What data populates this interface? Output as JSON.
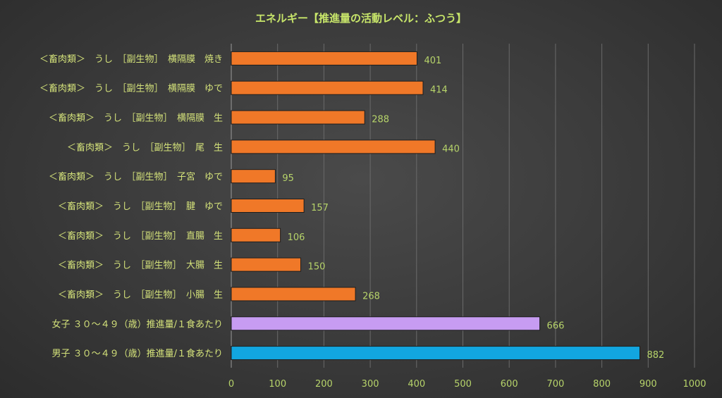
{
  "chart_data": {
    "type": "bar",
    "orientation": "horizontal",
    "title": "エネルギー【推進量の活動レベル：ふつう】",
    "categories": [
      "＜畜肉類＞　うし　［副生物］　横隔膜　焼き",
      "＜畜肉類＞　うし　［副生物］　横隔膜　ゆで",
      "＜畜肉類＞　うし　［副生物］　横隔膜　生",
      "＜畜肉類＞　うし　［副生物］　尾　生",
      "＜畜肉類＞　うし　［副生物］　子宮　ゆで",
      "＜畜肉類＞　うし　［副生物］　腱　ゆで",
      "＜畜肉類＞　うし　［副生物］　直腸　生",
      "＜畜肉類＞　うし　［副生物］　大腸　生",
      "＜畜肉類＞　うし　［副生物］　小腸　生",
      "女子 ３０～４９（歳）推進量/１食あたり",
      "男子 ３０～４９（歳）推進量/１食あたり"
    ],
    "values": [
      401,
      414,
      288,
      440,
      95,
      157,
      106,
      150,
      268,
      666,
      882
    ],
    "bar_colors": [
      "#f07828",
      "#f07828",
      "#f07828",
      "#f07828",
      "#f07828",
      "#f07828",
      "#f07828",
      "#f07828",
      "#f07828",
      "#c79cf2",
      "#12a6e0"
    ],
    "xlim": [
      0,
      1000
    ],
    "xticks": [
      "0",
      "100",
      "200",
      "300",
      "400",
      "500",
      "600",
      "700",
      "800",
      "900",
      "1000"
    ],
    "grid": true,
    "xlabel": "",
    "ylabel": ""
  }
}
